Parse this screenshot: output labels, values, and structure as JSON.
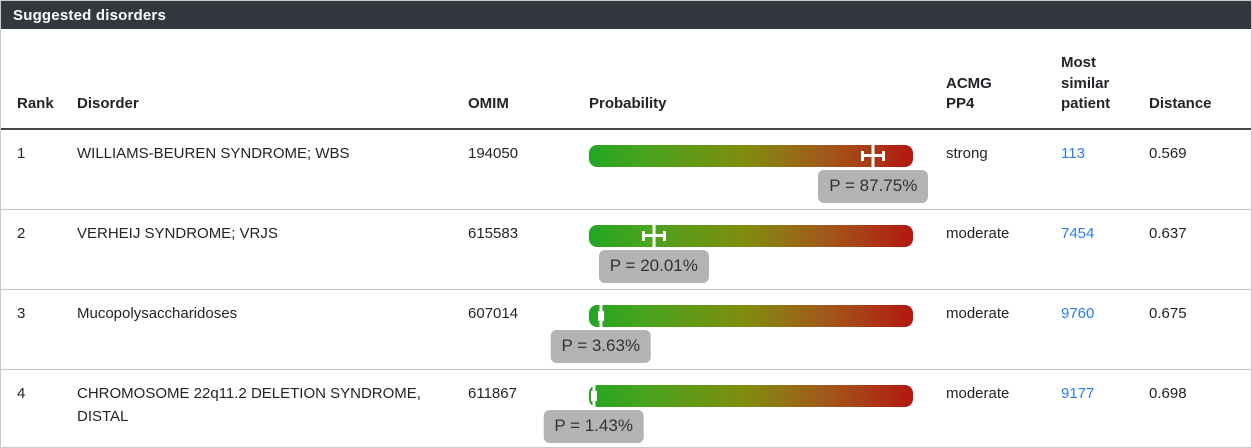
{
  "title": "Suggested disorders",
  "colors": {
    "titlebar_bg": "#32383e",
    "bar_green": "#22a622",
    "bar_red": "#b2190d",
    "tooltip_bg": "#b3b3b3",
    "link_blue": "#2b7cf0"
  },
  "columns": {
    "rank": "Rank",
    "disorder": "Disorder",
    "omim": "OMIM",
    "probability": "Probability",
    "acmg": "ACMG\nPP4",
    "patient": "Most\nsimilar\npatient",
    "distance": "Distance"
  },
  "chart_data": {
    "type": "bar",
    "title": "Suggested disorders",
    "categories": [
      "WILLIAMS-BEUREN SYNDROME; WBS",
      "VERHEIJ SYNDROME; VRJS",
      "Mucopolysaccharidoses",
      "CHROMOSOME 22q11.2 DELETION SYNDROME, DISTAL"
    ],
    "values": [
      87.75,
      20.01,
      3.63,
      1.43
    ],
    "xlabel": "",
    "ylabel": "Probability (%)",
    "xlim": [
      0,
      100
    ]
  },
  "rows": [
    {
      "rank": "1",
      "disorder": "WILLIAMS-BEUREN SYNDROME; WBS",
      "omim": "194050",
      "probability_pct": 87.75,
      "probability_label": "P = 87.75%",
      "ci_half_pct": 3.7,
      "acmg": "strong",
      "patient": "113",
      "distance": "0.569"
    },
    {
      "rank": "2",
      "disorder": "VERHEIJ SYNDROME; VRJS",
      "omim": "615583",
      "probability_pct": 20.01,
      "probability_label": "P = 20.01%",
      "ci_half_pct": 3.7,
      "acmg": "moderate",
      "patient": "7454",
      "distance": "0.637"
    },
    {
      "rank": "3",
      "disorder": "Mucopolysaccharidoses",
      "omim": "607014",
      "probability_pct": 3.63,
      "probability_label": "P = 3.63%",
      "ci_half_pct": 0.9,
      "acmg": "moderate",
      "patient": "9760",
      "distance": "0.675"
    },
    {
      "rank": "4",
      "disorder": "CHROMOSOME 22q11.2 DELETION SYNDROME, DISTAL",
      "omim": "611867",
      "probability_pct": 1.43,
      "probability_label": "P = 1.43%",
      "ci_half_pct": 0.6,
      "acmg": "moderate",
      "patient": "9177",
      "distance": "0.698"
    }
  ]
}
